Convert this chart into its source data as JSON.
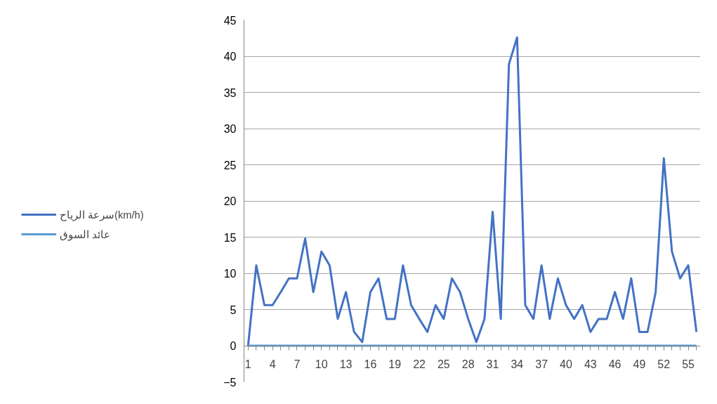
{
  "chart_data": {
    "type": "line",
    "categories": [
      "1",
      null,
      null,
      "4",
      null,
      null,
      "7",
      null,
      null,
      "10",
      null,
      null,
      "13",
      null,
      null,
      "16",
      null,
      null,
      "19",
      null,
      null,
      "22",
      null,
      null,
      "25",
      null,
      null,
      "28",
      null,
      null,
      "31",
      null,
      null,
      "34",
      null,
      null,
      "37",
      null,
      null,
      "40",
      null,
      null,
      "43",
      null,
      null,
      "46",
      null,
      null,
      "49",
      null,
      null,
      "52",
      null,
      null,
      "55",
      null
    ],
    "series": [
      {
        "name": "سرعة الرياح(km/h)",
        "color": "#4472c4",
        "values": [
          0,
          11.1,
          5.6,
          5.6,
          7.4,
          9.3,
          9.3,
          14.8,
          7.4,
          13,
          11.1,
          3.7,
          7.4,
          1.9,
          0.5,
          7.4,
          9.3,
          3.7,
          3.7,
          11.1,
          5.6,
          3.7,
          1.9,
          5.6,
          3.7,
          9.3,
          7.4,
          3.7,
          0.5,
          3.7,
          18.5,
          3.7,
          38.9,
          42.6,
          5.6,
          3.7,
          11.1,
          3.7,
          9.3,
          5.6,
          3.7,
          5.6,
          1.9,
          3.7,
          3.7,
          7.4,
          3.7,
          9.3,
          1.9,
          1.9,
          7.4,
          25.9,
          13,
          9.3,
          11.1,
          1.9
        ]
      },
      {
        "name": "عائد السوق",
        "color": "#5b9bd5",
        "values": [
          0,
          0,
          0,
          0,
          0,
          0,
          0,
          0,
          0,
          0,
          0,
          0,
          0,
          0,
          0,
          0,
          0,
          0,
          0,
          0,
          0,
          0,
          0,
          0,
          0,
          0,
          0,
          0,
          0,
          0,
          0,
          0,
          0,
          0,
          0,
          0,
          0,
          0,
          0,
          0,
          0,
          0,
          0,
          0,
          0,
          0,
          0,
          0,
          0,
          0,
          0,
          0,
          0,
          0,
          0,
          0
        ]
      }
    ],
    "ylim": [
      -5,
      45
    ],
    "yticks": [
      -5,
      0,
      5,
      10,
      15,
      20,
      25,
      30,
      35,
      40,
      45
    ],
    "grid": "y",
    "legend": "left",
    "marker": "none",
    "line_style": "solid"
  }
}
